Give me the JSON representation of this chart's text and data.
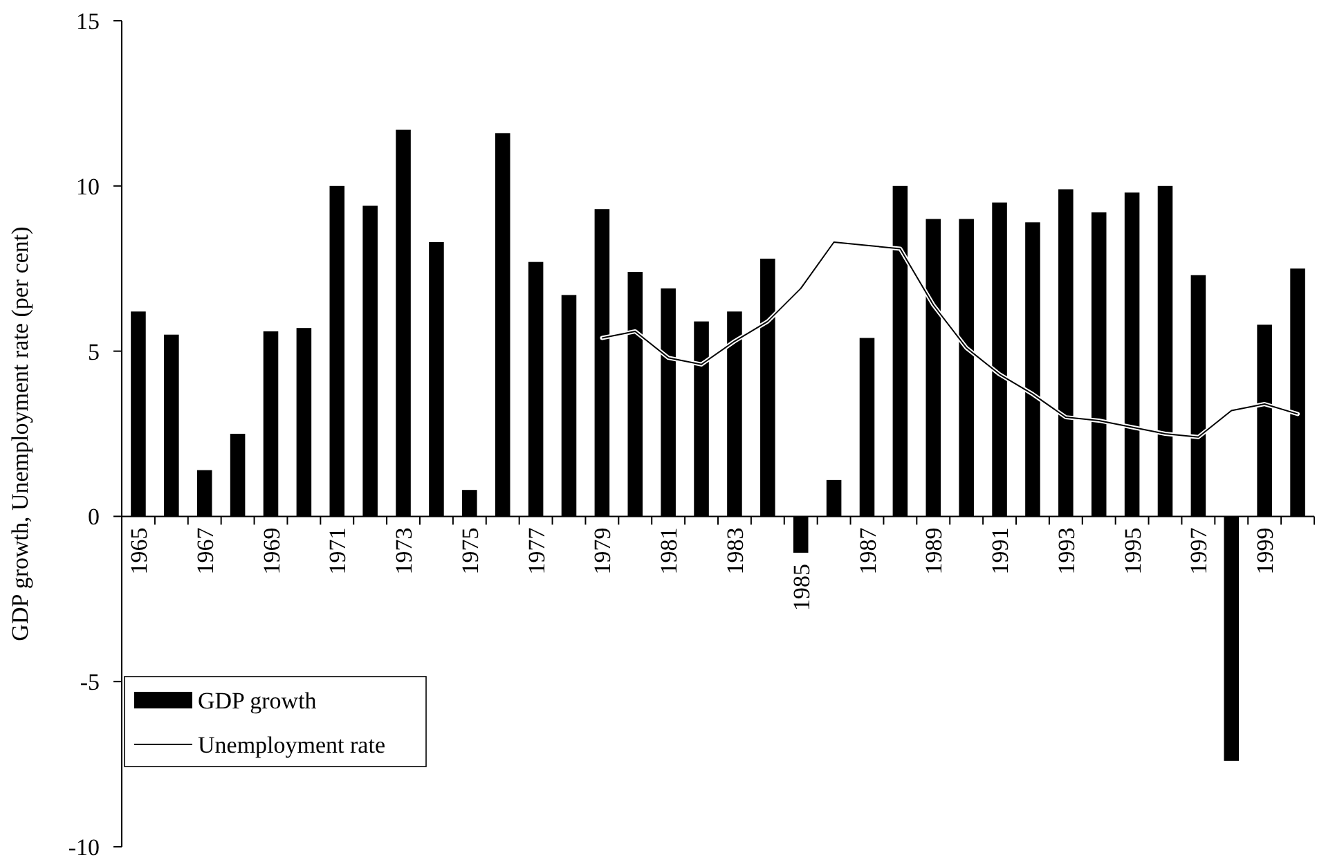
{
  "chart_data": {
    "type": "bar",
    "ylabel": "GDP growth, Unemployment rate (per cent)",
    "categories": [
      "1965",
      null,
      "1967",
      null,
      "1969",
      null,
      "1971",
      null,
      "1973",
      null,
      "1975",
      null,
      "1977",
      null,
      "1979",
      null,
      "1981",
      null,
      "1983",
      null,
      "1985",
      null,
      "1987",
      null,
      "1989",
      null,
      "1991",
      null,
      "1993",
      null,
      "1995",
      null,
      "1997",
      null,
      "1999",
      null
    ],
    "series": [
      {
        "name": "GDP growth",
        "color": "#000000",
        "values": [
          6.2,
          5.5,
          1.4,
          2.5,
          5.6,
          5.7,
          10.0,
          9.4,
          11.7,
          8.3,
          0.8,
          11.6,
          7.7,
          6.7,
          9.3,
          7.4,
          6.9,
          5.9,
          6.2,
          7.8,
          -1.1,
          1.1,
          5.4,
          10.0,
          9.0,
          9.0,
          9.5,
          8.9,
          9.9,
          9.2,
          9.8,
          10.0,
          7.3,
          -7.4,
          5.8,
          7.5
        ]
      },
      {
        "name": "Unemployment rate",
        "type": "line",
        "color": "#000000",
        "values": [
          null,
          null,
          null,
          null,
          null,
          null,
          null,
          null,
          null,
          null,
          null,
          null,
          null,
          null,
          5.4,
          5.6,
          4.8,
          4.6,
          5.3,
          5.9,
          6.9,
          8.3,
          8.2,
          8.1,
          6.4,
          5.1,
          4.3,
          3.7,
          3.0,
          2.9,
          2.7,
          2.5,
          2.4,
          3.2,
          3.4,
          3.1
        ]
      }
    ],
    "ylim": [
      -10,
      15
    ],
    "yticks": [
      -10,
      -5,
      0,
      5,
      10,
      15
    ],
    "grid": false,
    "legend": "bottom left"
  }
}
